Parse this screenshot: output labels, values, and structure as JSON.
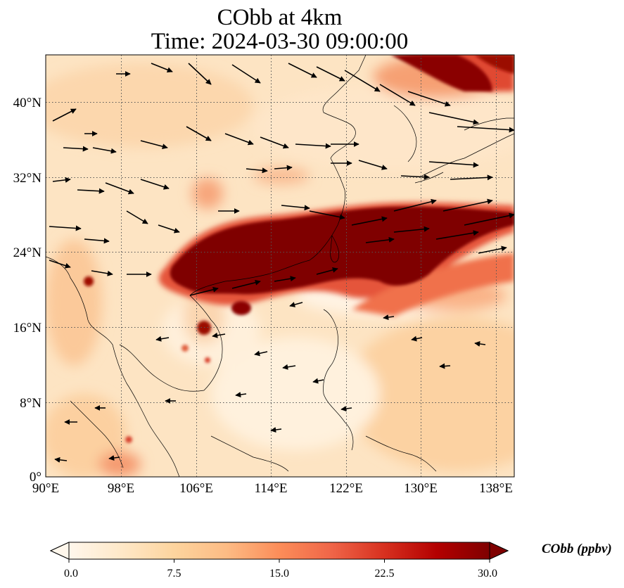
{
  "title": {
    "line1": "CObb at 4km",
    "line2": "Time: 2024-03-30 09:00:00"
  },
  "map": {
    "variable": "CObb",
    "level": "4km",
    "time": "2024-03-30 09:00:00",
    "lon_range": [
      90,
      139
    ],
    "lat_range": [
      0,
      45
    ],
    "gridlines": "dotted",
    "lon_ticks": [
      "90°E",
      "98°E",
      "106°E",
      "114°E",
      "122°E",
      "130°E",
      "138°E"
    ],
    "lat_ticks": [
      "0°",
      "8°N",
      "16°N",
      "24°N",
      "32°N",
      "40°N"
    ],
    "features": [
      "coastlines",
      "country borders",
      "wind vectors"
    ],
    "high_concentration_band": "southern China through Taiwan to east of 138°E, ~20–29°N"
  },
  "colorbar": {
    "label": "CObb (ppbv)",
    "min": 0.0,
    "max": 30.0,
    "ticks": [
      "0.0",
      "7.5",
      "15.0",
      "22.5",
      "30.0"
    ],
    "colormap": "OrRd",
    "colors": [
      "#fff7ec",
      "#fee8c8",
      "#fdd49e",
      "#fdbb84",
      "#fc8d59",
      "#ef6548",
      "#d7301f",
      "#b30000",
      "#7f0000"
    ],
    "extend": "both"
  }
}
